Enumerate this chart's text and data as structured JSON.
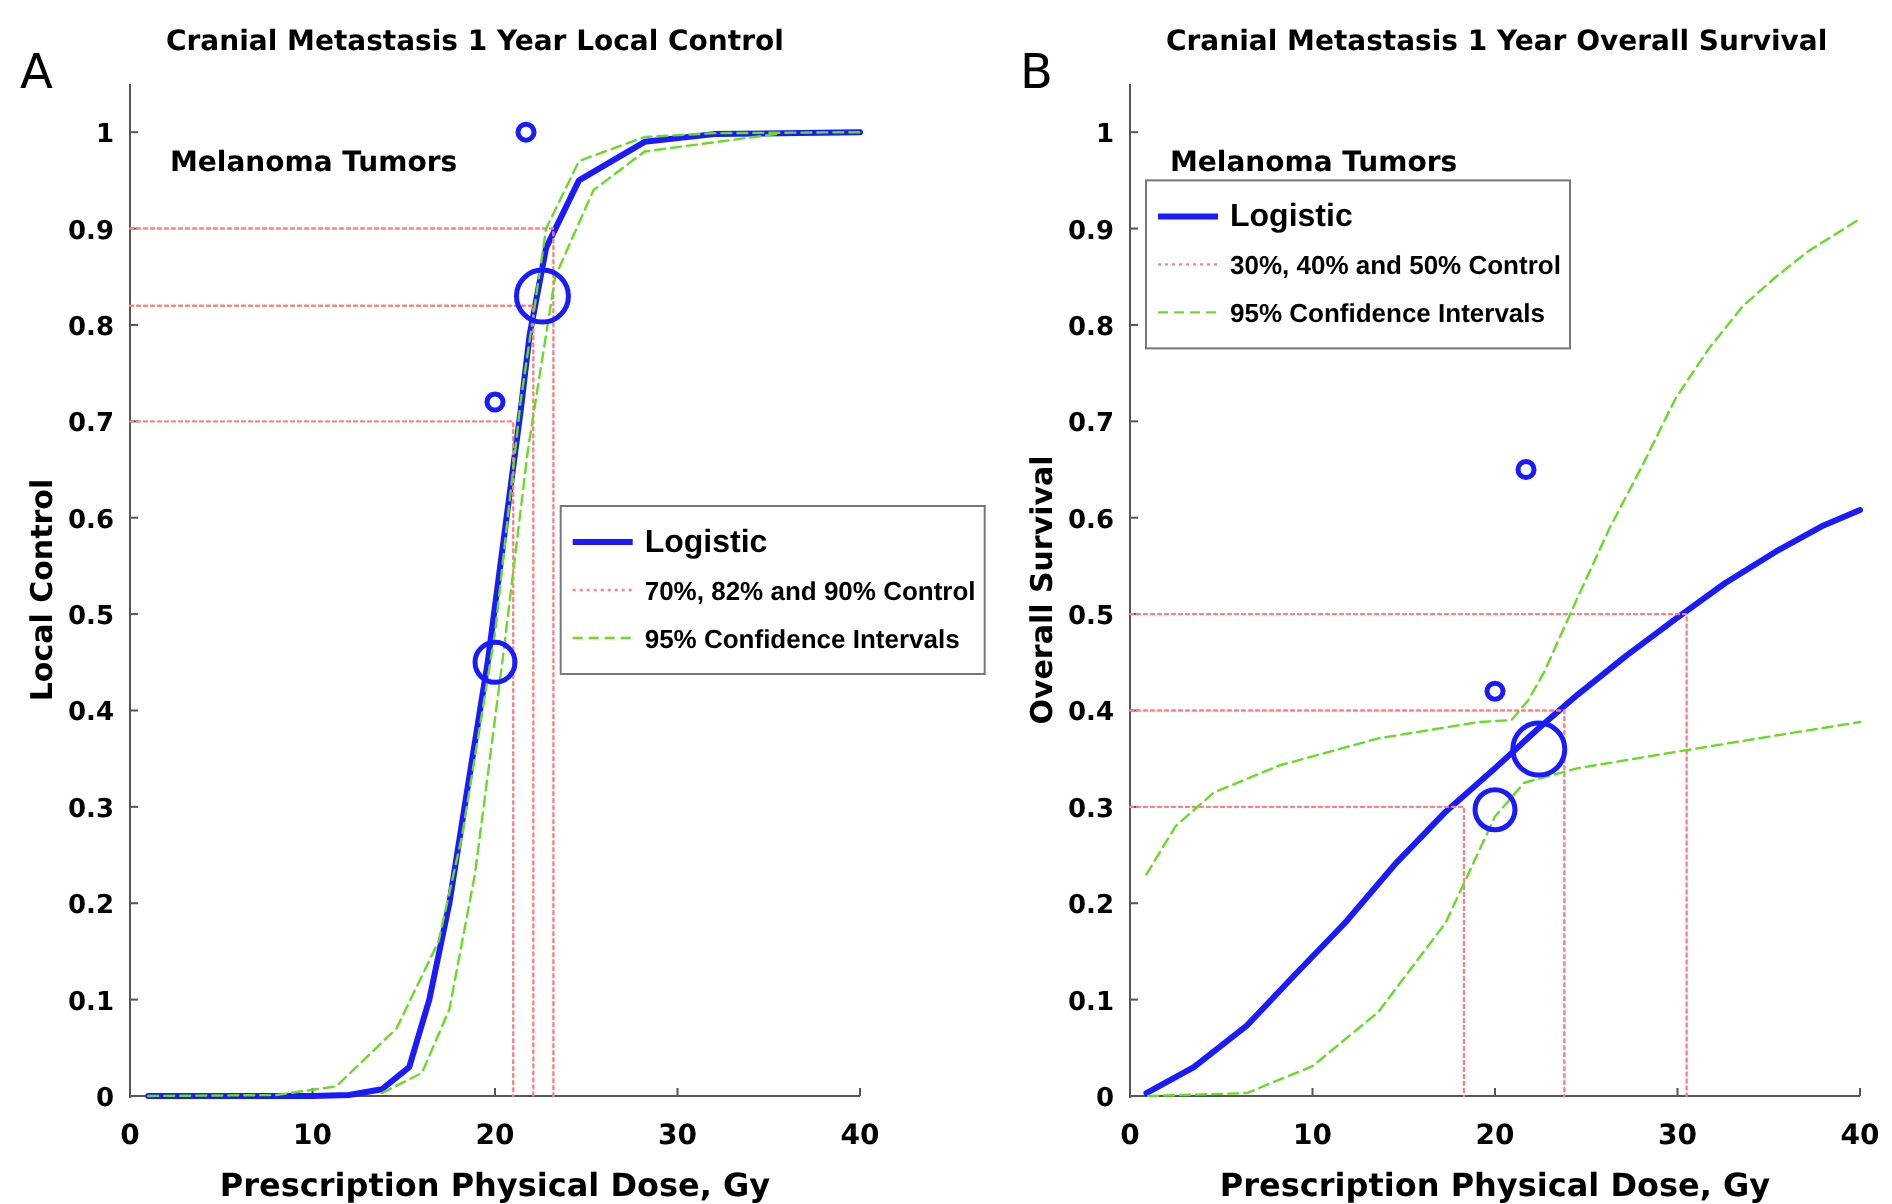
{
  "chart_data": [
    {
      "type": "line",
      "title": "Cranial Metastasis 1 Year Local Control",
      "xlabel": "Prescription Physical Dose, Gy",
      "ylabel": "Local Control",
      "annotations": [
        "A",
        "Melanoma Tumors"
      ],
      "xlim": [
        0,
        40
      ],
      "ylim": [
        0,
        1.05
      ],
      "xticks": [
        0,
        10,
        20,
        30,
        40
      ],
      "yticks": [
        0,
        0.1,
        0.2,
        0.3,
        0.4,
        0.5,
        0.6,
        0.7,
        0.8,
        0.9,
        1
      ],
      "grid": false,
      "legend": "right",
      "series": [
        {
          "name": "Logistic",
          "color": "#1a1aff",
          "line_style": "solid",
          "x": [
            1,
            10,
            12,
            13.8,
            15.3,
            16.4,
            17.5,
            18.5,
            19.6,
            20.7,
            21.4,
            21.9,
            22.8,
            24.6,
            28.2,
            32,
            40
          ],
          "values": [
            0,
            0,
            0.001,
            0.007,
            0.03,
            0.1,
            0.2,
            0.32,
            0.45,
            0.61,
            0.71,
            0.79,
            0.88,
            0.95,
            0.99,
            0.998,
            1
          ]
        },
        {
          "name": "70%, 82% and 90% Control",
          "color": "#ff8080",
          "line_style": "dotted",
          "x": [
            0,
            21,
            21
          ],
          "values": [
            0.7,
            0.7,
            0
          ]
        },
        {
          "color": "#ff8080",
          "line_style": "dotted",
          "x": [
            0,
            22.1,
            22.1
          ],
          "values": [
            0.82,
            0.82,
            0
          ]
        },
        {
          "color": "#ff8080",
          "line_style": "dotted",
          "x": [
            0,
            23.2,
            23.2
          ],
          "values": [
            0.9,
            0.9,
            0
          ]
        },
        {
          "name": "95% Confidence Intervals",
          "color": "#66dd22",
          "line_style": "dashed",
          "x": [
            1,
            8,
            11.3,
            14.6,
            16.9,
            18.2,
            20,
            21.4,
            22.8,
            24.6,
            28.2,
            32,
            40
          ],
          "values": [
            0,
            0.001,
            0.01,
            0.07,
            0.16,
            0.27,
            0.48,
            0.72,
            0.9,
            0.97,
            0.995,
            0.999,
            1
          ]
        },
        {
          "color": "#66dd22",
          "line_style": "dashed",
          "x": [
            13.8,
            16,
            17.5,
            18.9,
            20.4,
            21.8,
            23.3,
            25.4,
            28.2,
            35.4
          ],
          "values": [
            0.003,
            0.024,
            0.09,
            0.23,
            0.45,
            0.67,
            0.85,
            0.94,
            0.98,
            0.998
          ]
        },
        {
          "type": "bubble",
          "color": "#1a1aff",
          "marker": "circle",
          "x": [
            21.7,
            20,
            20,
            22.6
          ],
          "values": [
            1,
            0.72,
            0.45,
            0.83
          ],
          "sizes": [
            0.095,
            0.095,
            0.59,
            1
          ]
        }
      ]
    },
    {
      "type": "line",
      "title": "Cranial Metastasis 1 Year Overall Survival",
      "xlabel": "Prescription Physical Dose, Gy",
      "ylabel": "Overall Survival",
      "annotations": [
        "B",
        "Melanoma Tumors"
      ],
      "xlim": [
        0,
        40
      ],
      "ylim": [
        0,
        1.05
      ],
      "xticks": [
        0,
        10,
        20,
        30,
        40
      ],
      "yticks": [
        0,
        0.1,
        0.2,
        0.3,
        0.4,
        0.5,
        0.6,
        0.7,
        0.8,
        0.9,
        1
      ],
      "grid": false,
      "legend": "top left",
      "series": [
        {
          "name": "Logistic",
          "color": "#1a1aff",
          "line_style": "solid",
          "x": [
            0.9,
            3.5,
            6.4,
            9,
            11.8,
            14.5,
            17.3,
            20,
            22.3,
            24.5,
            27.2,
            29.9,
            32.6,
            35.4,
            38,
            40
          ],
          "values": [
            0.003,
            0.03,
            0.073,
            0.125,
            0.18,
            0.24,
            0.295,
            0.34,
            0.38,
            0.416,
            0.457,
            0.495,
            0.532,
            0.565,
            0.592,
            0.608
          ]
        },
        {
          "name": "30%, 40% and 50% Control",
          "color": "#ff8080",
          "line_style": "dotted",
          "x": [
            0,
            18.3,
            18.3
          ],
          "values": [
            0.3,
            0.3,
            0
          ]
        },
        {
          "color": "#ff8080",
          "line_style": "dotted",
          "x": [
            0,
            23.8,
            23.8
          ],
          "values": [
            0.4,
            0.4,
            0
          ]
        },
        {
          "color": "#ff8080",
          "line_style": "dotted",
          "x": [
            0,
            30.5,
            30.5
          ],
          "values": [
            0.5,
            0.5,
            0
          ]
        },
        {
          "name": "95% Confidence Intervals",
          "color": "#66dd22",
          "line_style": "dashed",
          "x": [
            0.9,
            2.5,
            4.6,
            8.2,
            13.6,
            19.1,
            20.9,
            21.8,
            22.7,
            24.5,
            26.3,
            28.1,
            29.9,
            31.7,
            33.6,
            35.4,
            37.2,
            40
          ],
          "values": [
            0.23,
            0.28,
            0.315,
            0.343,
            0.371,
            0.388,
            0.39,
            0.41,
            0.44,
            0.516,
            0.59,
            0.655,
            0.724,
            0.775,
            0.82,
            0.85,
            0.877,
            0.91
          ]
        },
        {
          "color": "#66dd22",
          "line_style": "dashed",
          "x": [
            1,
            6.4,
            10,
            13.6,
            17.3,
            20,
            21.6,
            24.5,
            29.9,
            35.4,
            40
          ],
          "values": [
            0,
            0.003,
            0.031,
            0.087,
            0.18,
            0.29,
            0.325,
            0.34,
            0.357,
            0.374,
            0.388
          ]
        },
        {
          "type": "bubble",
          "color": "#1a1aff",
          "marker": "circle",
          "x": [
            21.7,
            20,
            20,
            22.4
          ],
          "values": [
            0.65,
            0.42,
            0.297,
            0.36
          ],
          "sizes": [
            0.095,
            0.095,
            0.59,
            1
          ]
        }
      ]
    }
  ]
}
